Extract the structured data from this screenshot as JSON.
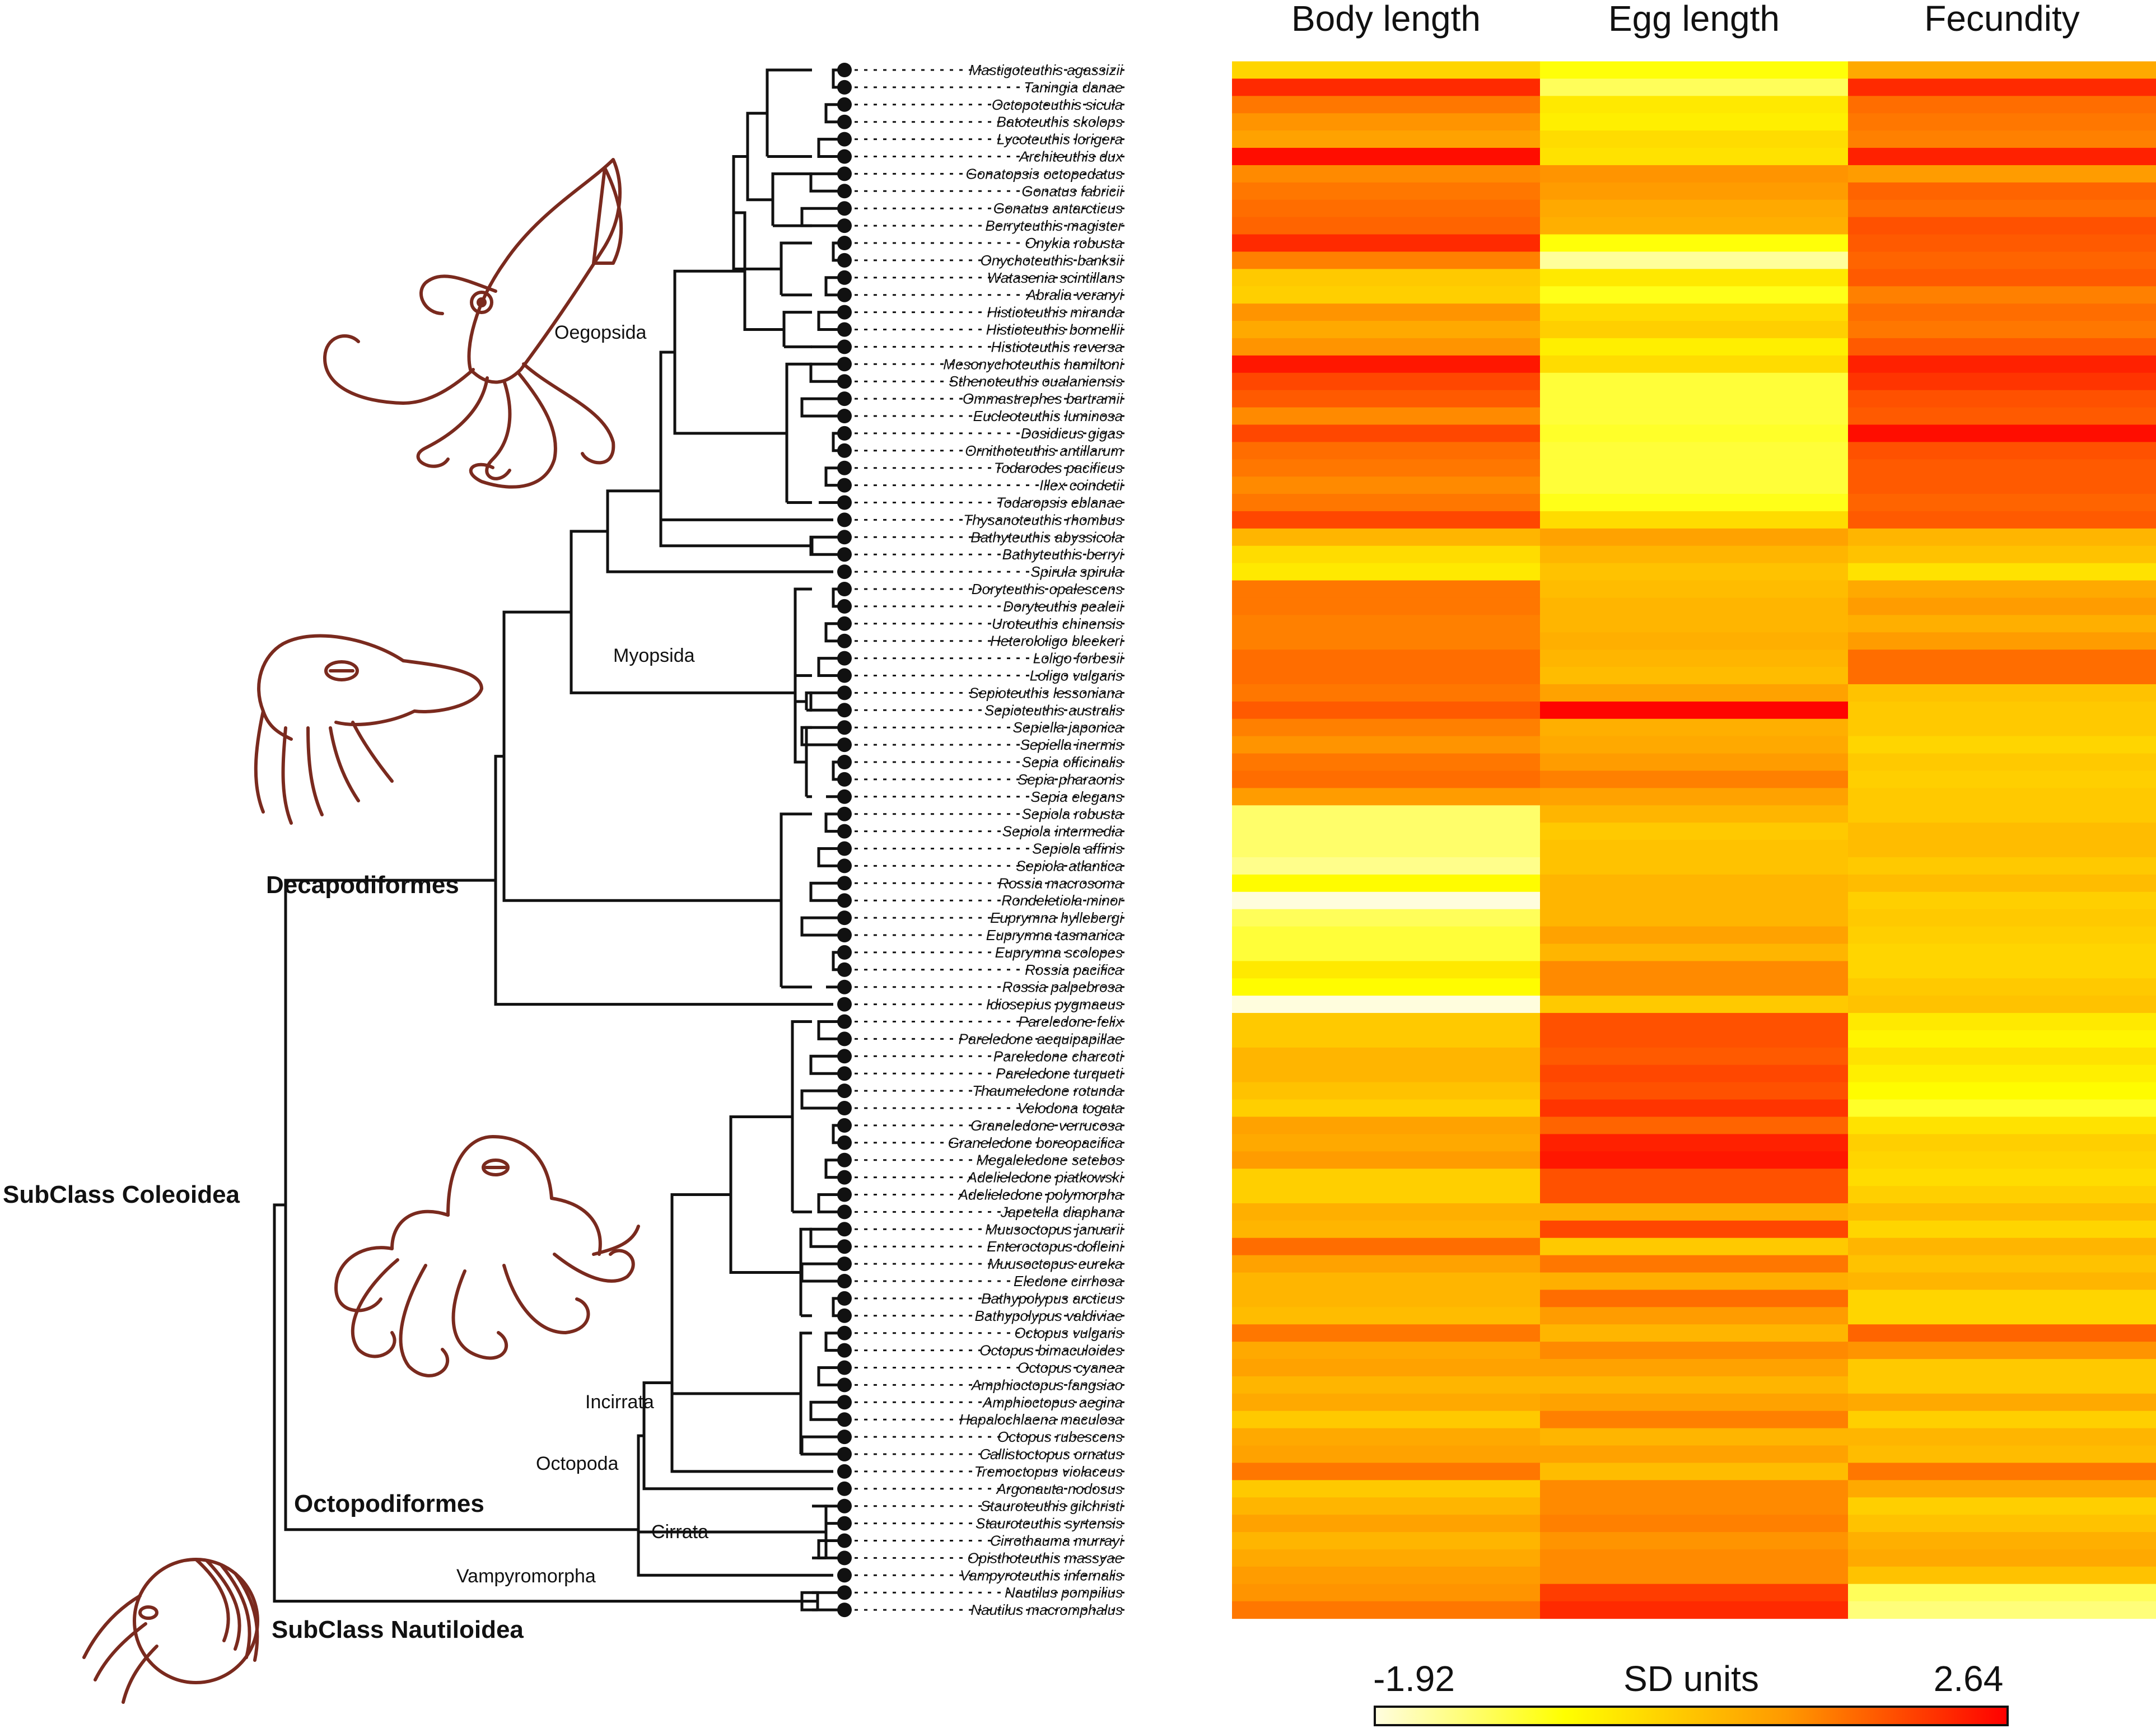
{
  "chart_data": {
    "type": "heatmap",
    "title": "",
    "columns": [
      "Body length",
      "Egg length",
      "Fecundity"
    ],
    "color_scale": {
      "label": "SD units",
      "min_label": "-1.92",
      "max_label": "2.64",
      "min": -1.92,
      "max": 2.64,
      "colors": [
        "#fffde0",
        "#ffff00",
        "#ff9900",
        "#ff0000"
      ]
    },
    "species": [
      "Mastigoteuthis agassizii",
      "Taningia danae",
      "Octopoteuthis sicula",
      "Batoteuthis skolops",
      "Lycoteuthis lorigera",
      "Architeuthis dux",
      "Gonatopsis octopedatus",
      "Gonatus fabricii",
      "Gonatus antarcticus",
      "Berryteuthis magister",
      "Onykia robusta",
      "Onychoteuthis banksii",
      "Watasenia scintillans",
      "Abralia veranyi",
      "Histioteuthis miranda",
      "Histioteuthis bonnellii",
      "Histioteuthis reversa",
      "Mesonychoteuthis hamiltoni",
      "Sthenoteuthis oualaniensis",
      "Ommastrephes bartramii",
      "Eucleoteuthis luminosa",
      "Dosidicus gigas",
      "Ornithoteuthis antillarum",
      "Todarodes pacificus",
      "Illex coindetii",
      "Todaropsis eblanae",
      "Thysanoteuthis rhombus",
      "Bathyteuthis abyssicola",
      "Bathyteuthis berryi",
      "Spirula spirula",
      "Doryteuthis opalescens",
      "Doryteuthis pealeii",
      "Uroteuthis chinensis",
      "Heterololigo bleekeri",
      "Loligo forbesii",
      "Loligo vulgaris",
      "Sepioteuthis lessoniana",
      "Sepioteuthis australis",
      "Sepiella japonica",
      "Sepiella inermis",
      "Sepia officinalis",
      "Sepia pharaonis",
      "Sepia elegans",
      "Sepiola robusta",
      "Sepiola intermedia",
      "Sepiola affinis",
      "Sepiola atlantica",
      "Rossia macrosoma",
      "Rondeletiola minor",
      "Euprymna hyllebergi",
      "Euprymna tasmanica",
      "Euprymna scolopes",
      "Rossia pacifica",
      "Rossia palpebrosa",
      "Idiosepius pygmaeus",
      "Pareledone felix",
      "Pareledone aequipapillae",
      "Pareledone charcoti",
      "Pareledone turqueti",
      "Thaumeledone rotunda",
      "Velodona togata",
      "Graneledone verrucosa",
      "Graneledone boreopacifica",
      "Megaleledone setebos",
      "Adelieledone piatkowski",
      "Adelieledone polymorpha",
      "Japetella diaphana",
      "Muusoctopus januarii",
      "Enteroctopus dofleini",
      "Muusoctopus eureka",
      "Eledone cirrhosa",
      "Bathypolypus arcticus",
      "Bathypolypus valdiviae",
      "Octopus vulgaris",
      "Octopus bimaculoides",
      "Octopus cyanea",
      "Amphioctopus fangsiao",
      "Amphioctopus aegina",
      "Hapalochlaena maculosa",
      "Octopus rubescens",
      "Callistoctopus ornatus",
      "Tremoctopus violaceus",
      "Argonauta nodosus",
      "Stauroteuthis gilchristi",
      "Stauroteuthis syrtensis",
      "Cirrothauma murrayi",
      "Opisthoteuthis massyae",
      "Vampyroteuthis infernalis",
      "Nautilus pompilius",
      "Nautilus macromphalus"
    ],
    "body_length": [
      0.1,
      2.2,
      1.4,
      1.1,
      0.9,
      2.5,
      1.2,
      1.4,
      1.5,
      1.6,
      2.2,
      1.3,
      0.3,
      0.2,
      1.1,
      0.8,
      1.1,
      2.4,
      1.9,
      1.7,
      1.2,
      1.9,
      1.5,
      1.4,
      1.2,
      1.4,
      1.9,
      0.6,
      0.0,
      -0.2,
      1.4,
      1.4,
      1.3,
      1.3,
      1.5,
      1.5,
      1.4,
      1.7,
      1.3,
      1.1,
      1.4,
      1.5,
      1.0,
      -1.2,
      -1.2,
      -1.2,
      -1.4,
      -0.5,
      -1.9,
      -1.1,
      -0.9,
      -0.9,
      -0.2,
      -0.5,
      -1.9,
      0.3,
      0.3,
      0.6,
      0.6,
      0.4,
      0.2,
      0.9,
      0.8,
      1.0,
      0.2,
      0.2,
      0.7,
      0.6,
      1.5,
      0.9,
      0.6,
      0.6,
      0.5,
      1.4,
      0.8,
      0.9,
      0.6,
      0.8,
      0.3,
      0.8,
      0.9,
      1.4,
      0.3,
      0.6,
      0.9,
      0.6,
      0.8,
      1.0,
      1.1,
      1.4
    ],
    "egg_length": [
      -0.6,
      -1.1,
      -0.2,
      -0.3,
      0.0,
      -0.1,
      1.1,
      1.0,
      0.8,
      0.7,
      -0.6,
      -1.5,
      -0.2,
      -0.7,
      0.0,
      0.2,
      -0.3,
      0.0,
      -0.9,
      -0.9,
      -0.9,
      -0.8,
      -0.9,
      -0.9,
      -0.9,
      -0.7,
      0.0,
      0.9,
      0.6,
      0.4,
      0.5,
      0.6,
      0.6,
      0.7,
      0.6,
      0.5,
      0.9,
      2.6,
      0.7,
      0.8,
      1.0,
      1.3,
      0.9,
      0.6,
      0.3,
      0.4,
      0.4,
      0.6,
      0.6,
      0.6,
      0.9,
      0.6,
      1.2,
      1.2,
      0.3,
      1.8,
      1.8,
      1.7,
      1.9,
      1.8,
      2.1,
      1.6,
      2.3,
      2.4,
      1.8,
      1.8,
      0.7,
      1.9,
      0.3,
      1.4,
      0.7,
      1.5,
      1.0,
      0.6,
      1.2,
      0.9,
      0.6,
      0.9,
      1.3,
      0.6,
      0.9,
      0.5,
      1.2,
      1.2,
      1.3,
      1.1,
      1.2,
      1.2,
      2.0,
      2.2
    ],
    "fecundity": [
      0.8,
      2.2,
      1.5,
      1.4,
      1.3,
      2.3,
      1.0,
      1.6,
      1.5,
      1.8,
      1.7,
      1.6,
      1.7,
      1.3,
      1.5,
      1.4,
      1.7,
      2.3,
      2.1,
      1.8,
      1.7,
      2.5,
      1.8,
      1.7,
      1.7,
      1.6,
      1.7,
      0.6,
      0.4,
      -0.1,
      0.8,
      1.0,
      0.7,
      1.0,
      1.5,
      1.5,
      0.4,
      0.3,
      0.3,
      0.1,
      0.3,
      0.2,
      0.3,
      0.3,
      0.5,
      0.5,
      0.3,
      0.5,
      0.2,
      0.3,
      0.2,
      0.1,
      0.1,
      0.3,
      0.4,
      -0.2,
      -0.4,
      -0.1,
      -0.3,
      -0.5,
      -0.8,
      -0.1,
      0.2,
      0.1,
      0.0,
      0.2,
      0.5,
      0.1,
      0.6,
      0.4,
      0.6,
      0.1,
      0.1,
      1.6,
      1.1,
      0.3,
      0.3,
      0.8,
      0.2,
      0.6,
      0.5,
      1.4,
      0.8,
      0.2,
      0.4,
      0.7,
      0.8,
      0.4,
      -1.1,
      -1.3
    ]
  },
  "tree_labels": {
    "oegopsida": "Oegopsida",
    "myopsida": "Myopsida",
    "decapodiformes": "Decapodiformes",
    "coleoidea": "SubClass Coleoidea",
    "incirrata": "Incirrata",
    "octopoda": "Octopoda",
    "octopodiformes": "Octopodiformes",
    "cirrata": "Cirrata",
    "vampyromorpha": "Vampyromorpha",
    "nautiloidea": "SubClass Nautiloidea"
  },
  "illustrations": {
    "squid": "squid-illustration",
    "cuttlefish": "cuttlefish-illustration",
    "octopus": "octopus-illustration",
    "nautilus": "nautilus-illustration",
    "line_color": "#7a2a1e"
  }
}
